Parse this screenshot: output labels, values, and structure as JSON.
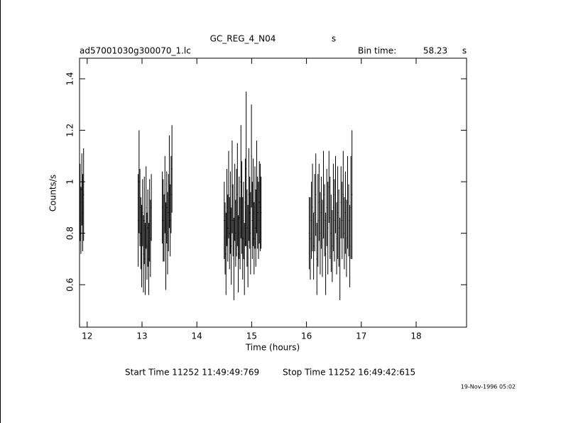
{
  "chart_data": {
    "type": "errorbar",
    "title": "GC_REG_4_N04",
    "title_unit": "s",
    "file_name": "ad57001030g300070_1.lc",
    "bin_label": "Bin time:",
    "bin_time": 58.23,
    "bin_unit": "s",
    "xlabel": "Time (hours)",
    "ylabel": "Counts/s",
    "start_time": "Start Time 11252 11:49:49:769",
    "stop_time": "Stop Time 11252 16:49:42:615",
    "timestamp": "19-Nov-1996 05:02",
    "color": "#000000",
    "xlim": [
      11.86,
      18.92
    ],
    "xticks": [
      12,
      13,
      14,
      15,
      16,
      17,
      18
    ],
    "ylim": [
      0.435,
      1.48
    ],
    "yticks": [
      0.6,
      0.8,
      1,
      1.2,
      1.4
    ],
    "x": [
      11.87,
      11.886,
      11.902,
      11.918,
      11.934,
      12.93,
      12.946,
      12.962,
      12.978,
      12.994,
      13.01,
      13.026,
      13.042,
      13.058,
      13.074,
      13.09,
      13.106,
      13.122,
      13.138,
      13.154,
      13.17,
      13.37,
      13.386,
      13.402,
      13.418,
      13.434,
      13.45,
      13.466,
      13.482,
      13.498,
      13.514,
      13.53,
      13.546,
      14.5,
      14.516,
      14.532,
      14.548,
      14.564,
      14.58,
      14.596,
      14.612,
      14.628,
      14.644,
      14.66,
      14.676,
      14.692,
      14.708,
      14.724,
      14.74,
      14.756,
      14.772,
      14.788,
      14.804,
      14.82,
      14.836,
      14.852,
      14.868,
      14.884,
      14.9,
      14.916,
      14.932,
      14.948,
      14.964,
      14.98,
      14.996,
      15.012,
      15.028,
      15.044,
      15.06,
      15.076,
      15.092,
      15.108,
      15.124,
      15.14,
      15.156,
      15.172,
      16.05,
      16.07,
      16.09,
      16.11,
      16.13,
      16.15,
      16.17,
      16.19,
      16.21,
      16.23,
      16.25,
      16.27,
      16.29,
      16.31,
      16.33,
      16.35,
      16.37,
      16.39,
      16.41,
      16.43,
      16.45,
      16.47,
      16.49,
      16.51,
      16.53,
      16.55,
      16.57,
      16.59,
      16.61,
      16.63,
      16.65,
      16.67,
      16.69,
      16.71,
      16.73,
      16.75,
      16.77,
      16.79,
      16.81,
      16.83
    ],
    "values": [
      0.92,
      0.85,
      0.97,
      0.88,
      0.95,
      0.85,
      1.0,
      0.9,
      0.8,
      0.75,
      0.88,
      0.72,
      0.85,
      0.7,
      0.9,
      0.75,
      0.82,
      0.7,
      0.85,
      0.78,
      0.9,
      0.9,
      0.85,
      0.82,
      0.95,
      0.75,
      0.9,
      0.8,
      0.88,
      1.0,
      0.85,
      0.95,
      1.05,
      0.85,
      0.78,
      0.72,
      0.9,
      0.82,
      0.95,
      0.8,
      0.88,
      0.75,
      0.98,
      0.85,
      0.7,
      0.92,
      0.8,
      0.88,
      0.95,
      0.72,
      0.86,
      0.8,
      1.0,
      0.9,
      0.78,
      0.85,
      0.7,
      0.92,
      1.05,
      0.82,
      0.75,
      0.95,
      0.88,
      0.8,
      1.1,
      0.85,
      0.92,
      0.78,
      0.9,
      0.82,
      0.98,
      0.88,
      0.85,
      0.92,
      0.9,
      0.88,
      0.8,
      0.78,
      0.85,
      0.9,
      0.75,
      0.88,
      0.95,
      0.7,
      0.85,
      0.92,
      0.8,
      0.88,
      0.78,
      0.95,
      0.85,
      0.72,
      0.9,
      0.82,
      0.98,
      0.86,
      0.8,
      0.75,
      0.9,
      0.85,
      0.95,
      0.78,
      0.88,
      0.82,
      0.7,
      0.92,
      0.85,
      0.95,
      0.8,
      0.88,
      0.78,
      0.92,
      0.85,
      0.75,
      0.9,
      0.95
    ],
    "errors": [
      0.15,
      0.13,
      0.14,
      0.15,
      0.18,
      0.18,
      0.2,
      0.15,
      0.14,
      0.16,
      0.13,
      0.15,
      0.17,
      0.14,
      0.16,
      0.13,
      0.15,
      0.14,
      0.16,
      0.15,
      0.13,
      0.14,
      0.16,
      0.13,
      0.15,
      0.17,
      0.14,
      0.16,
      0.15,
      0.18,
      0.14,
      0.15,
      0.17,
      0.15,
      0.14,
      0.16,
      0.15,
      0.13,
      0.17,
      0.14,
      0.16,
      0.15,
      0.18,
      0.14,
      0.16,
      0.15,
      0.13,
      0.17,
      0.2,
      0.15,
      0.16,
      0.14,
      0.22,
      0.18,
      0.16,
      0.15,
      0.14,
      0.17,
      0.3,
      0.15,
      0.16,
      0.18,
      0.14,
      0.16,
      0.2,
      0.15,
      0.17,
      0.14,
      0.16,
      0.15,
      0.18,
      0.14,
      0.15,
      0.16,
      0.17,
      0.14,
      0.14,
      0.16,
      0.15,
      0.17,
      0.13,
      0.15,
      0.16,
      0.14,
      0.18,
      0.15,
      0.16,
      0.14,
      0.15,
      0.17,
      0.14,
      0.16,
      0.15,
      0.18,
      0.14,
      0.16,
      0.15,
      0.14,
      0.17,
      0.16,
      0.15,
      0.14,
      0.18,
      0.15,
      0.16,
      0.14,
      0.15,
      0.17,
      0.14,
      0.16,
      0.15,
      0.18,
      0.14,
      0.16,
      0.2,
      0.25
    ]
  }
}
